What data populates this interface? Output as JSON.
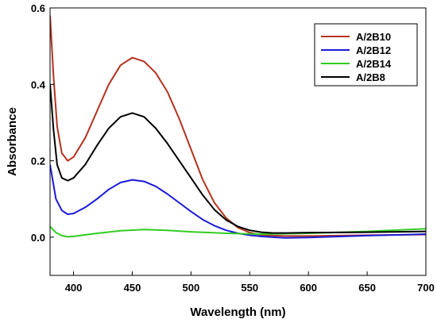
{
  "chart_data": {
    "type": "line",
    "title": "",
    "xlabel": "Wavelength (nm)",
    "ylabel": "Absorbance",
    "xlim": [
      380,
      700
    ],
    "ylim": [
      -0.1,
      0.6
    ],
    "xticks": [
      400,
      450,
      500,
      550,
      600,
      650,
      700
    ],
    "yticks": [
      0.0,
      0.2,
      0.4,
      0.6
    ],
    "ytick_labels": [
      "0.0",
      "0.2",
      "0.4",
      "0.6"
    ],
    "grid": false,
    "legend_position": "top-right",
    "series": [
      {
        "name": "A/2B10",
        "color": "#b5321f",
        "x": [
          380,
          383,
          386,
          390,
          395,
          400,
          410,
          420,
          430,
          440,
          450,
          460,
          470,
          480,
          490,
          500,
          510,
          520,
          530,
          540,
          550,
          560,
          570,
          580,
          600,
          650,
          700
        ],
        "y": [
          0.58,
          0.42,
          0.29,
          0.22,
          0.2,
          0.21,
          0.26,
          0.33,
          0.4,
          0.45,
          0.47,
          0.46,
          0.43,
          0.38,
          0.31,
          0.23,
          0.15,
          0.09,
          0.05,
          0.025,
          0.012,
          0.006,
          0.004,
          0.003,
          0.003,
          0.005,
          0.007
        ]
      },
      {
        "name": "A/2B12",
        "color": "#1a1ad6",
        "x": [
          380,
          385,
          390,
          395,
          400,
          410,
          420,
          430,
          440,
          450,
          460,
          470,
          480,
          490,
          500,
          510,
          520,
          530,
          540,
          550,
          560,
          570,
          580,
          600,
          650,
          700
        ],
        "y": [
          0.19,
          0.1,
          0.07,
          0.06,
          0.062,
          0.078,
          0.1,
          0.125,
          0.143,
          0.15,
          0.146,
          0.133,
          0.113,
          0.09,
          0.067,
          0.046,
          0.03,
          0.018,
          0.01,
          0.005,
          0.002,
          0.0,
          -0.002,
          -0.001,
          0.004,
          0.008
        ]
      },
      {
        "name": "A/2B14",
        "color": "#33cc22",
        "x": [
          380,
          385,
          390,
          395,
          400,
          420,
          440,
          460,
          480,
          500,
          530,
          560,
          600,
          650,
          700
        ],
        "y": [
          0.028,
          0.012,
          0.004,
          0.001,
          0.002,
          0.01,
          0.017,
          0.02,
          0.018,
          0.014,
          0.01,
          0.008,
          0.01,
          0.015,
          0.022
        ]
      },
      {
        "name": "A/2B8",
        "color": "#000000",
        "x": [
          380,
          383,
          386,
          390,
          395,
          400,
          410,
          420,
          430,
          440,
          450,
          460,
          470,
          480,
          490,
          500,
          510,
          520,
          530,
          540,
          550,
          560,
          570,
          580,
          600,
          650,
          700
        ],
        "y": [
          0.4,
          0.28,
          0.19,
          0.155,
          0.148,
          0.155,
          0.19,
          0.24,
          0.285,
          0.315,
          0.325,
          0.315,
          0.285,
          0.245,
          0.2,
          0.155,
          0.11,
          0.072,
          0.045,
          0.028,
          0.018,
          0.013,
          0.011,
          0.011,
          0.012,
          0.013,
          0.015
        ]
      }
    ]
  }
}
